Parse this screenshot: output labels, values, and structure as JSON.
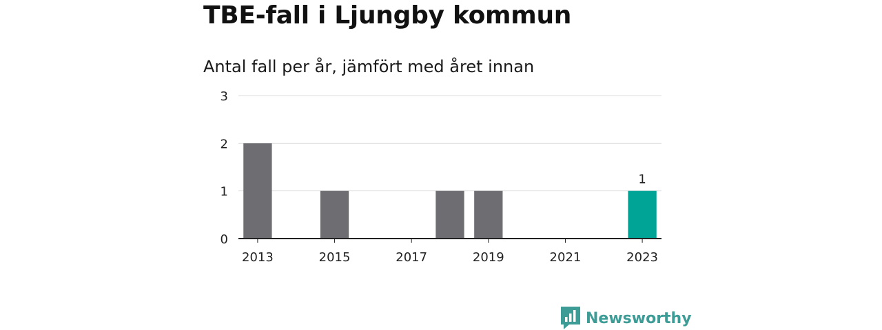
{
  "chart_data": {
    "type": "bar",
    "title": "TBE-fall i Ljungby kommun",
    "subtitle": "Antal fall per år, jämfört med året innan",
    "x": [
      2013,
      2014,
      2015,
      2016,
      2017,
      2018,
      2019,
      2020,
      2021,
      2022,
      2023
    ],
    "values": [
      2,
      0,
      1,
      0,
      0,
      1,
      1,
      0,
      0,
      0,
      1
    ],
    "x_tick_labels": [
      "2013",
      "2015",
      "2017",
      "2019",
      "2021",
      "2023"
    ],
    "y_ticks": [
      0,
      1,
      2,
      3
    ],
    "ylim": [
      0,
      3
    ],
    "grid": true,
    "highlight": {
      "x": 2023,
      "label": "1",
      "color": "#00a497"
    },
    "bar_color": "#6d6d72"
  },
  "brand": {
    "name": "Newsworthy",
    "logo_icon": "newsworthy-logo-icon",
    "color": "#3e9c97"
  }
}
